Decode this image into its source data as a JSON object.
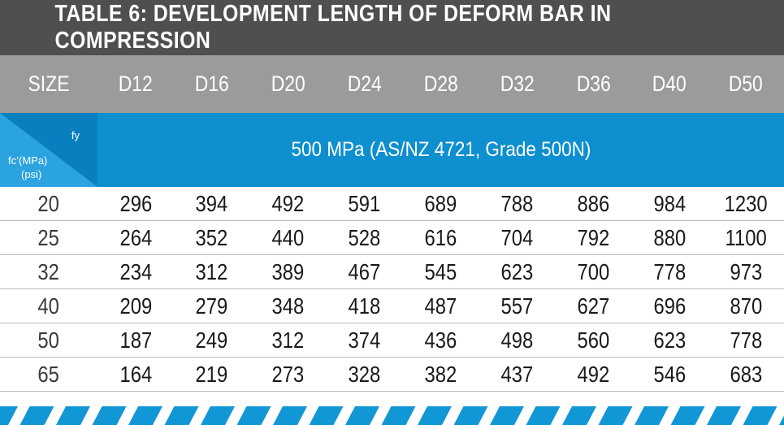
{
  "title": "TABLE 6: DEVELOPMENT LENGTH OF DEFORM BAR IN COMPRESSION",
  "header": {
    "size_label": "SIZE",
    "sizes": [
      "D12",
      "D16",
      "D20",
      "D24",
      "D28",
      "D32",
      "D36",
      "D40",
      "D50"
    ]
  },
  "grade_row": {
    "fy_label": "fy",
    "fc_label": "fc’(MPa)",
    "psi_label": "(psi)",
    "grade_text": "500 MPa (AS/NZ 4721, Grade 500N)"
  },
  "rows": [
    {
      "fc": "20",
      "values": [
        "296",
        "394",
        "492",
        "591",
        "689",
        "788",
        "886",
        "984",
        "1230"
      ]
    },
    {
      "fc": "25",
      "values": [
        "264",
        "352",
        "440",
        "528",
        "616",
        "704",
        "792",
        "880",
        "1100"
      ]
    },
    {
      "fc": "32",
      "values": [
        "234",
        "312",
        "389",
        "467",
        "545",
        "623",
        "700",
        "778",
        "973"
      ]
    },
    {
      "fc": "40",
      "values": [
        "209",
        "279",
        "348",
        "418",
        "487",
        "557",
        "627",
        "696",
        "870"
      ]
    },
    {
      "fc": "50",
      "values": [
        "187",
        "249",
        "312",
        "374",
        "436",
        "498",
        "560",
        "623",
        "778"
      ]
    },
    {
      "fc": "65",
      "values": [
        "164",
        "219",
        "273",
        "328",
        "382",
        "437",
        "492",
        "546",
        "683"
      ]
    }
  ],
  "colors": {
    "title_bg": "#4f4f51",
    "header_bg": "#9b9b9c",
    "grade_bg": "#0e8fcf",
    "stripe": "#1196d6"
  }
}
